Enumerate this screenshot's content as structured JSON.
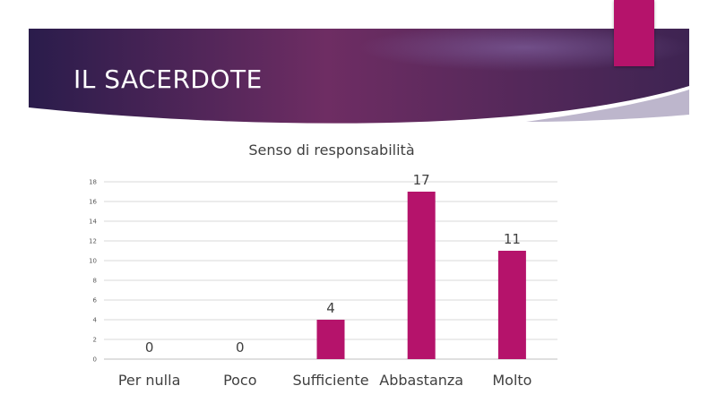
{
  "slide": {
    "title": "IL SACERDOTE",
    "banner_colors": [
      "#2a1c4b",
      "#6e2d63",
      "#3e2452"
    ],
    "accent": "#b5136b"
  },
  "chart_data": {
    "type": "bar",
    "title": "Senso di responsabilità",
    "categories": [
      "Per nulla",
      "Poco",
      "Sufficiente",
      "Abbastanza",
      "Molto"
    ],
    "values": [
      0,
      0,
      4,
      17,
      11
    ],
    "ylim": [
      0,
      18
    ],
    "yticks": [
      0,
      2,
      4,
      6,
      8,
      10,
      12,
      14,
      16,
      18
    ],
    "grid": true,
    "legend": "none",
    "bar_color": "#b5136b"
  }
}
